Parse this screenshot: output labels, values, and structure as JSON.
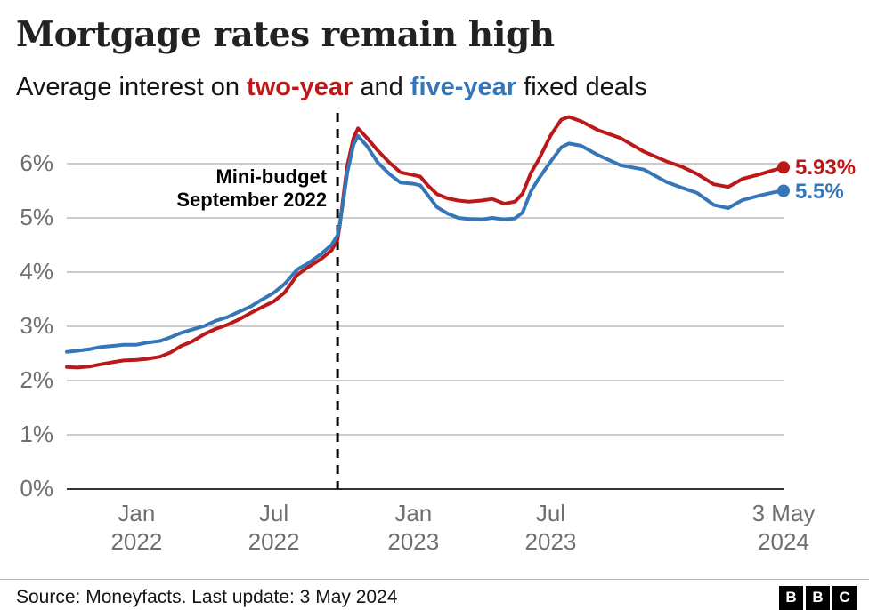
{
  "chart_data": {
    "type": "line",
    "title": "Mortgage rates remain high",
    "subtitle": {
      "prefix": "Average interest on ",
      "two_year": "two-year",
      "middle": " and ",
      "five_year": "five-year",
      "suffix": " fixed deals"
    },
    "colors": {
      "two_year": "#bb1919",
      "five_year": "#3576b8",
      "grid": "#cccccc",
      "axis": "#333333",
      "tick_text": "#6f6f6f",
      "annotation_line": "#000000"
    },
    "x_domain": {
      "start": "2021-10-01",
      "end": "2024-05-03"
    },
    "y_axis": {
      "min": 0,
      "max": 6.9,
      "ticks": [
        {
          "value": 0,
          "label": "0%"
        },
        {
          "value": 1,
          "label": "1%"
        },
        {
          "value": 2,
          "label": "2%"
        },
        {
          "value": 3,
          "label": "3%"
        },
        {
          "value": 4,
          "label": "4%"
        },
        {
          "value": 5,
          "label": "5%"
        },
        {
          "value": 6,
          "label": "6%"
        }
      ]
    },
    "x_ticks": [
      {
        "date": "2022-01-01",
        "line1": "Jan",
        "line2": "2022"
      },
      {
        "date": "2022-07-01",
        "line1": "Jul",
        "line2": "2022"
      },
      {
        "date": "2023-01-01",
        "line1": "Jan",
        "line2": "2023"
      },
      {
        "date": "2023-07-01",
        "line1": "Jul",
        "line2": "2023"
      },
      {
        "date": "2024-05-03",
        "line1": "3 May",
        "line2": "2024"
      }
    ],
    "annotation": {
      "date": "2022-09-23",
      "line1": "Mini-budget",
      "line2": "September 2022"
    },
    "series": [
      {
        "name": "two-year",
        "color": "#bb1919",
        "end_label": "5.93%",
        "end_value": 5.93,
        "points": [
          [
            "2021-10-01",
            2.25
          ],
          [
            "2021-10-15",
            2.24
          ],
          [
            "2021-11-01",
            2.26
          ],
          [
            "2021-11-15",
            2.3
          ],
          [
            "2021-12-01",
            2.34
          ],
          [
            "2021-12-15",
            2.37
          ],
          [
            "2022-01-01",
            2.38
          ],
          [
            "2022-01-15",
            2.4
          ],
          [
            "2022-02-01",
            2.44
          ],
          [
            "2022-02-15",
            2.52
          ],
          [
            "2022-03-01",
            2.64
          ],
          [
            "2022-03-15",
            2.72
          ],
          [
            "2022-04-01",
            2.86
          ],
          [
            "2022-04-15",
            2.95
          ],
          [
            "2022-05-01",
            3.03
          ],
          [
            "2022-05-15",
            3.12
          ],
          [
            "2022-06-01",
            3.25
          ],
          [
            "2022-06-15",
            3.35
          ],
          [
            "2022-07-01",
            3.46
          ],
          [
            "2022-07-15",
            3.62
          ],
          [
            "2022-08-01",
            3.95
          ],
          [
            "2022-08-15",
            4.09
          ],
          [
            "2022-09-01",
            4.24
          ],
          [
            "2022-09-15",
            4.4
          ],
          [
            "2022-09-23",
            4.6
          ],
          [
            "2022-09-26",
            4.87
          ],
          [
            "2022-10-01",
            5.43
          ],
          [
            "2022-10-06",
            5.97
          ],
          [
            "2022-10-14",
            6.47
          ],
          [
            "2022-10-20",
            6.65
          ],
          [
            "2022-11-01",
            6.47
          ],
          [
            "2022-11-15",
            6.24
          ],
          [
            "2022-12-01",
            6.01
          ],
          [
            "2022-12-15",
            5.84
          ],
          [
            "2023-01-01",
            5.79
          ],
          [
            "2023-01-10",
            5.76
          ],
          [
            "2023-01-20",
            5.6
          ],
          [
            "2023-02-01",
            5.44
          ],
          [
            "2023-02-15",
            5.36
          ],
          [
            "2023-03-01",
            5.32
          ],
          [
            "2023-03-15",
            5.3
          ],
          [
            "2023-04-01",
            5.32
          ],
          [
            "2023-04-15",
            5.35
          ],
          [
            "2023-05-01",
            5.26
          ],
          [
            "2023-05-15",
            5.3
          ],
          [
            "2023-05-25",
            5.45
          ],
          [
            "2023-06-05",
            5.83
          ],
          [
            "2023-06-15",
            6.07
          ],
          [
            "2023-07-01",
            6.52
          ],
          [
            "2023-07-15",
            6.81
          ],
          [
            "2023-07-25",
            6.86
          ],
          [
            "2023-08-10",
            6.78
          ],
          [
            "2023-09-01",
            6.62
          ],
          [
            "2023-10-01",
            6.47
          ],
          [
            "2023-11-01",
            6.22
          ],
          [
            "2023-12-01",
            6.04
          ],
          [
            "2023-12-20",
            5.95
          ],
          [
            "2024-01-10",
            5.81
          ],
          [
            "2024-02-01",
            5.62
          ],
          [
            "2024-02-20",
            5.57
          ],
          [
            "2024-03-10",
            5.72
          ],
          [
            "2024-04-01",
            5.8
          ],
          [
            "2024-04-20",
            5.88
          ],
          [
            "2024-05-03",
            5.93
          ]
        ]
      },
      {
        "name": "five-year",
        "color": "#3576b8",
        "end_label": "5.5%",
        "end_value": 5.5,
        "points": [
          [
            "2021-10-01",
            2.53
          ],
          [
            "2021-10-15",
            2.55
          ],
          [
            "2021-11-01",
            2.58
          ],
          [
            "2021-11-15",
            2.62
          ],
          [
            "2021-12-01",
            2.64
          ],
          [
            "2021-12-15",
            2.66
          ],
          [
            "2022-01-01",
            2.66
          ],
          [
            "2022-01-15",
            2.7
          ],
          [
            "2022-02-01",
            2.73
          ],
          [
            "2022-02-15",
            2.8
          ],
          [
            "2022-03-01",
            2.88
          ],
          [
            "2022-03-15",
            2.94
          ],
          [
            "2022-04-01",
            3.01
          ],
          [
            "2022-04-15",
            3.1
          ],
          [
            "2022-05-01",
            3.17
          ],
          [
            "2022-05-15",
            3.26
          ],
          [
            "2022-06-01",
            3.37
          ],
          [
            "2022-06-15",
            3.49
          ],
          [
            "2022-07-01",
            3.62
          ],
          [
            "2022-07-15",
            3.78
          ],
          [
            "2022-08-01",
            4.05
          ],
          [
            "2022-08-15",
            4.16
          ],
          [
            "2022-09-01",
            4.33
          ],
          [
            "2022-09-15",
            4.5
          ],
          [
            "2022-09-23",
            4.68
          ],
          [
            "2022-09-26",
            4.9
          ],
          [
            "2022-10-01",
            5.35
          ],
          [
            "2022-10-06",
            5.85
          ],
          [
            "2022-10-14",
            6.35
          ],
          [
            "2022-10-20",
            6.51
          ],
          [
            "2022-11-01",
            6.32
          ],
          [
            "2022-11-15",
            6.02
          ],
          [
            "2022-12-01",
            5.8
          ],
          [
            "2022-12-15",
            5.65
          ],
          [
            "2023-01-01",
            5.63
          ],
          [
            "2023-01-10",
            5.6
          ],
          [
            "2023-01-20",
            5.42
          ],
          [
            "2023-02-01",
            5.2
          ],
          [
            "2023-02-15",
            5.08
          ],
          [
            "2023-03-01",
            5.0
          ],
          [
            "2023-03-15",
            4.98
          ],
          [
            "2023-04-01",
            4.97
          ],
          [
            "2023-04-15",
            5.0
          ],
          [
            "2023-05-01",
            4.97
          ],
          [
            "2023-05-15",
            4.99
          ],
          [
            "2023-05-25",
            5.1
          ],
          [
            "2023-06-05",
            5.49
          ],
          [
            "2023-06-15",
            5.72
          ],
          [
            "2023-07-01",
            6.04
          ],
          [
            "2023-07-15",
            6.3
          ],
          [
            "2023-07-25",
            6.37
          ],
          [
            "2023-08-10",
            6.33
          ],
          [
            "2023-09-01",
            6.16
          ],
          [
            "2023-10-01",
            5.97
          ],
          [
            "2023-11-01",
            5.89
          ],
          [
            "2023-12-01",
            5.66
          ],
          [
            "2023-12-20",
            5.56
          ],
          [
            "2024-01-10",
            5.46
          ],
          [
            "2024-02-01",
            5.24
          ],
          [
            "2024-02-20",
            5.18
          ],
          [
            "2024-03-10",
            5.33
          ],
          [
            "2024-04-01",
            5.41
          ],
          [
            "2024-04-20",
            5.47
          ],
          [
            "2024-05-03",
            5.5
          ]
        ]
      }
    ]
  },
  "footer": {
    "source": "Source: Moneyfacts. Last update: 3 May 2024",
    "logo_letters": [
      "B",
      "B",
      "C"
    ]
  }
}
